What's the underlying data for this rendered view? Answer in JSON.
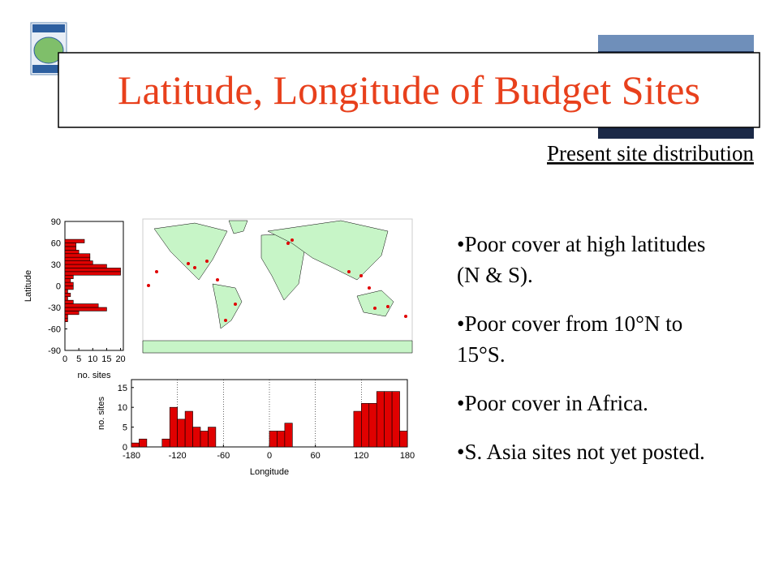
{
  "title": "Latitude, Longitude of Budget Sites",
  "subtitle": "Present site distribution",
  "bullets": [
    "•Poor cover at high latitudes (N & S).",
    "•Poor  cover from 10°N to 15°S.",
    "•Poor cover in Africa.",
    "•S. Asia sites not yet posted."
  ],
  "chart_data": [
    {
      "type": "histogram",
      "orientation": "horizontal",
      "color": "#e00000",
      "xlabel": "no. sites",
      "ylabel": "Latitude",
      "bins": [
        -90,
        -85,
        -80,
        -75,
        -70,
        -65,
        -60,
        -55,
        -50,
        -45,
        -40,
        -35,
        -30,
        -25,
        -20,
        -15,
        -10,
        -5,
        0,
        5,
        10,
        15,
        20,
        25,
        30,
        35,
        40,
        45,
        50,
        55,
        60,
        65,
        70,
        75,
        80,
        85,
        90
      ],
      "values": [
        0,
        0,
        0,
        0,
        0,
        0,
        0,
        0,
        1,
        1,
        5,
        15,
        12,
        3,
        1,
        2,
        1,
        3,
        3,
        2,
        3,
        20,
        20,
        15,
        10,
        9,
        9,
        5,
        4,
        4,
        7,
        0,
        0,
        0,
        0,
        0
      ],
      "xlim": [
        0,
        21
      ],
      "xticks": [
        0,
        5,
        10,
        15,
        20
      ],
      "ylim": [
        -90,
        90
      ],
      "yticks": [
        -90,
        -60,
        -30,
        0,
        30,
        60,
        90
      ],
      "grid": false
    },
    {
      "type": "histogram",
      "orientation": "vertical",
      "color": "#e00000",
      "xlabel": "Longitude",
      "ylabel": "no. sites",
      "bins": [
        -180,
        -170,
        -160,
        -150,
        -140,
        -130,
        -120,
        -110,
        -100,
        -90,
        -80,
        -70,
        -60,
        -50,
        -40,
        -30,
        -20,
        -10,
        0,
        10,
        20,
        30,
        40,
        50,
        60,
        70,
        80,
        90,
        100,
        110,
        120,
        130,
        140,
        150,
        160,
        170,
        180
      ],
      "values": [
        1,
        2,
        0,
        0,
        2,
        10,
        7,
        9,
        5,
        4,
        5,
        0,
        0,
        0,
        0,
        0,
        0,
        0,
        4,
        4,
        6,
        0,
        0,
        0,
        0,
        0,
        0,
        0,
        0,
        9,
        11,
        11,
        14,
        14,
        14,
        4
      ],
      "xlim": [
        -180,
        180
      ],
      "xticks": [
        -180,
        -120,
        -60,
        0,
        60,
        120,
        180
      ],
      "ylim": [
        0,
        17
      ],
      "yticks": [
        0,
        5,
        10,
        15
      ],
      "grid": true
    }
  ]
}
